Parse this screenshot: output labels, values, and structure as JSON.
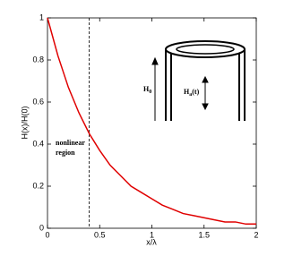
{
  "chart_data": {
    "type": "line",
    "xlabel": "x/λ",
    "ylabel": "H(x)/H(0)",
    "x": [
      0,
      0.1,
      0.2,
      0.3,
      0.4,
      0.5,
      0.6,
      0.7,
      0.8,
      0.9,
      1,
      1.1,
      1.2,
      1.3,
      1.4,
      1.5,
      1.6,
      1.7,
      1.8,
      1.9,
      2
    ],
    "values": [
      1,
      0.82,
      0.67,
      0.55,
      0.45,
      0.37,
      0.3,
      0.25,
      0.2,
      0.17,
      0.14,
      0.11,
      0.09,
      0.07,
      0.06,
      0.05,
      0.04,
      0.03,
      0.03,
      0.02,
      0.02
    ],
    "color": "#e00000",
    "xlim": [
      0,
      2
    ],
    "xticks": [
      0,
      0.5,
      1,
      1.5,
      2
    ],
    "ylim": [
      0,
      1
    ],
    "yticks": [
      0,
      0.2,
      0.4,
      0.6,
      0.8,
      1
    ],
    "grid": false,
    "vline": {
      "x": 0.4,
      "style": "dashed"
    },
    "annotation_lines": [
      "nonlinear",
      "region"
    ],
    "inset_labels": [
      {
        "base": "H",
        "sub": "0"
      },
      {
        "base": "H",
        "sub": "a",
        "suffix": "(t)"
      }
    ]
  }
}
